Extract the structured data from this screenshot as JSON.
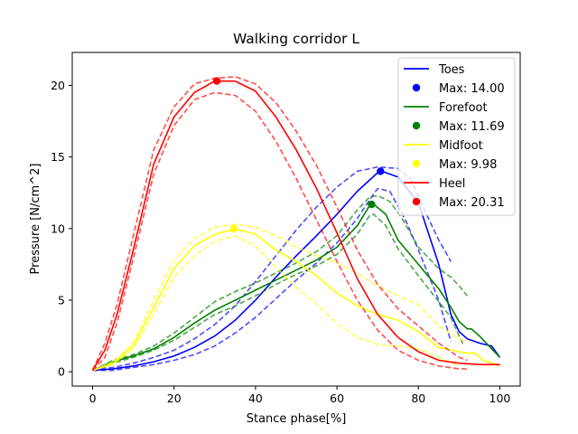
{
  "chart_data": {
    "type": "line",
    "title": "Walking corridor L",
    "xlabel": "Stance phase[%]",
    "ylabel": "Pressure [N/cm^2]",
    "xlim": [
      -5,
      105
    ],
    "ylim": [
      -1,
      22.3
    ],
    "xticks": [
      0,
      20,
      40,
      60,
      80,
      100
    ],
    "yticks": [
      0,
      5,
      10,
      15,
      20
    ],
    "grid": false,
    "legend_position": "top-right",
    "series": [
      {
        "name": "Toes",
        "color": "#0000ff",
        "mean": [
          [
            0,
            0.1
          ],
          [
            5,
            0.2
          ],
          [
            10,
            0.4
          ],
          [
            15,
            0.7
          ],
          [
            20,
            1.1
          ],
          [
            25,
            1.7
          ],
          [
            30,
            2.5
          ],
          [
            35,
            3.6
          ],
          [
            40,
            5.0
          ],
          [
            45,
            6.6
          ],
          [
            50,
            8.1
          ],
          [
            55,
            9.5
          ],
          [
            60,
            11.0
          ],
          [
            65,
            12.6
          ],
          [
            70,
            13.9
          ],
          [
            71,
            14.0
          ],
          [
            75,
            13.6
          ],
          [
            80,
            11.8
          ],
          [
            85,
            7.5
          ],
          [
            88,
            4.0
          ],
          [
            90,
            2.8
          ],
          [
            92,
            2.3
          ],
          [
            95,
            2.0
          ],
          [
            98,
            1.8
          ],
          [
            100,
            1.0
          ]
        ],
        "upper": [
          [
            0,
            0.2
          ],
          [
            5,
            0.3
          ],
          [
            10,
            0.6
          ],
          [
            15,
            1.0
          ],
          [
            20,
            1.5
          ],
          [
            25,
            2.3
          ],
          [
            30,
            3.3
          ],
          [
            35,
            4.6
          ],
          [
            40,
            6.3
          ],
          [
            45,
            8.1
          ],
          [
            50,
            9.9
          ],
          [
            55,
            11.5
          ],
          [
            60,
            12.9
          ],
          [
            65,
            14.0
          ],
          [
            70,
            14.3
          ],
          [
            75,
            14.2
          ],
          [
            78,
            13.5
          ],
          [
            82,
            11.0
          ],
          [
            85,
            9.2
          ],
          [
            88,
            7.7
          ]
        ],
        "lower": [
          [
            0,
            0.1
          ],
          [
            5,
            0.1
          ],
          [
            10,
            0.3
          ],
          [
            15,
            0.5
          ],
          [
            20,
            0.8
          ],
          [
            25,
            1.2
          ],
          [
            30,
            1.8
          ],
          [
            35,
            2.7
          ],
          [
            40,
            3.8
          ],
          [
            45,
            5.1
          ],
          [
            50,
            6.4
          ],
          [
            55,
            7.6
          ],
          [
            60,
            9.0
          ],
          [
            65,
            10.7
          ],
          [
            68,
            12.0
          ],
          [
            70,
            12.8
          ],
          [
            73,
            12.6
          ],
          [
            77,
            10.5
          ],
          [
            80,
            8.5
          ],
          [
            85,
            5.0
          ],
          [
            88,
            2.1
          ]
        ],
        "max": {
          "x": 70.7,
          "y": 14.0,
          "label": "Max: 14.00"
        }
      },
      {
        "name": "Forefoot",
        "color": "#008000",
        "mean": [
          [
            0,
            0.1
          ],
          [
            5,
            0.7
          ],
          [
            10,
            1.1
          ],
          [
            15,
            1.6
          ],
          [
            20,
            2.4
          ],
          [
            25,
            3.4
          ],
          [
            30,
            4.3
          ],
          [
            35,
            5.0
          ],
          [
            40,
            5.7
          ],
          [
            45,
            6.4
          ],
          [
            50,
            7.1
          ],
          [
            55,
            7.8
          ],
          [
            60,
            8.7
          ],
          [
            65,
            10.2
          ],
          [
            68,
            11.6
          ],
          [
            69,
            11.7
          ],
          [
            72,
            11.0
          ],
          [
            75,
            9.2
          ],
          [
            80,
            7.5
          ],
          [
            85,
            5.8
          ],
          [
            88,
            4.5
          ],
          [
            90,
            3.5
          ],
          [
            92,
            3.0
          ],
          [
            93,
            3.0
          ],
          [
            95,
            2.5
          ],
          [
            98,
            1.6
          ],
          [
            100,
            1.0
          ]
        ],
        "upper": [
          [
            0,
            0.1
          ],
          [
            5,
            0.8
          ],
          [
            10,
            1.2
          ],
          [
            15,
            1.8
          ],
          [
            20,
            2.7
          ],
          [
            25,
            3.8
          ],
          [
            30,
            4.9
          ],
          [
            35,
            5.6
          ],
          [
            40,
            6.2
          ],
          [
            45,
            6.9
          ],
          [
            50,
            7.6
          ],
          [
            55,
            8.4
          ],
          [
            60,
            9.5
          ],
          [
            65,
            11.3
          ],
          [
            68,
            12.2
          ],
          [
            70,
            12.3
          ],
          [
            73,
            11.9
          ],
          [
            76,
            10.7
          ],
          [
            80,
            8.7
          ],
          [
            85,
            7.2
          ],
          [
            88,
            6.6
          ],
          [
            90,
            6.0
          ],
          [
            92,
            5.3
          ]
        ],
        "lower": [
          [
            0,
            0.1
          ],
          [
            5,
            0.6
          ],
          [
            10,
            1.0
          ],
          [
            15,
            1.5
          ],
          [
            20,
            2.2
          ],
          [
            25,
            3.1
          ],
          [
            30,
            4.0
          ],
          [
            35,
            4.6
          ],
          [
            40,
            5.3
          ],
          [
            45,
            6.1
          ],
          [
            50,
            6.8
          ],
          [
            55,
            7.4
          ],
          [
            60,
            8.2
          ],
          [
            65,
            9.6
          ],
          [
            68,
            10.9
          ],
          [
            69,
            11.0
          ],
          [
            72,
            10.2
          ],
          [
            75,
            8.6
          ],
          [
            80,
            6.7
          ],
          [
            85,
            4.9
          ],
          [
            88,
            3.8
          ],
          [
            90,
            2.5
          ],
          [
            91,
            1.9
          ]
        ],
        "max": {
          "x": 68.5,
          "y": 11.69,
          "label": "Max: 11.69"
        }
      },
      {
        "name": "Midfoot",
        "color": "#ffff00",
        "mean": [
          [
            0,
            0.1
          ],
          [
            5,
            0.6
          ],
          [
            10,
            1.8
          ],
          [
            15,
            4.5
          ],
          [
            20,
            7.2
          ],
          [
            25,
            8.8
          ],
          [
            30,
            9.6
          ],
          [
            35,
            9.98
          ],
          [
            40,
            9.6
          ],
          [
            45,
            8.5
          ],
          [
            50,
            7.7
          ],
          [
            55,
            6.7
          ],
          [
            60,
            5.5
          ],
          [
            65,
            4.6
          ],
          [
            70,
            4.0
          ],
          [
            75,
            3.6
          ],
          [
            80,
            2.8
          ],
          [
            85,
            1.7
          ],
          [
            90,
            1.4
          ],
          [
            92,
            1.3
          ],
          [
            94,
            1.3
          ],
          [
            96,
            0.8
          ],
          [
            100,
            0.4
          ]
        ],
        "upper": [
          [
            0,
            0.1
          ],
          [
            5,
            0.7
          ],
          [
            10,
            2.0
          ],
          [
            15,
            5.0
          ],
          [
            20,
            7.8
          ],
          [
            25,
            9.3
          ],
          [
            30,
            10.1
          ],
          [
            35,
            10.3
          ],
          [
            40,
            10.1
          ],
          [
            45,
            9.5
          ],
          [
            50,
            8.7
          ],
          [
            55,
            8.1
          ],
          [
            60,
            7.6
          ],
          [
            65,
            6.9
          ],
          [
            70,
            6.0
          ],
          [
            75,
            5.3
          ],
          [
            80,
            4.7
          ],
          [
            85,
            3.2
          ],
          [
            90,
            2.3
          ],
          [
            92,
            2.1
          ]
        ],
        "lower": [
          [
            0,
            0.1
          ],
          [
            5,
            0.5
          ],
          [
            10,
            1.6
          ],
          [
            15,
            4.0
          ],
          [
            20,
            6.6
          ],
          [
            25,
            8.1
          ],
          [
            30,
            9.1
          ],
          [
            35,
            9.5
          ],
          [
            40,
            8.8
          ],
          [
            45,
            7.3
          ],
          [
            50,
            5.9
          ],
          [
            55,
            4.7
          ],
          [
            60,
            3.4
          ],
          [
            65,
            2.4
          ],
          [
            70,
            1.9
          ],
          [
            75,
            1.8
          ],
          [
            80,
            1.6
          ],
          [
            85,
            1.0
          ],
          [
            90,
            0.4
          ]
        ],
        "max": {
          "x": 34.7,
          "y": 9.98,
          "label": "Max: 9.98"
        }
      },
      {
        "name": "Heel",
        "color": "#ff0000",
        "mean": [
          [
            0,
            0.1
          ],
          [
            3,
            1.5
          ],
          [
            6,
            4.0
          ],
          [
            10,
            8.5
          ],
          [
            15,
            14.5
          ],
          [
            20,
            17.8
          ],
          [
            25,
            19.5
          ],
          [
            30,
            20.3
          ],
          [
            35,
            20.3
          ],
          [
            40,
            19.6
          ],
          [
            45,
            17.8
          ],
          [
            50,
            15.5
          ],
          [
            55,
            12.8
          ],
          [
            60,
            9.7
          ],
          [
            65,
            6.5
          ],
          [
            70,
            4.0
          ],
          [
            75,
            2.4
          ],
          [
            80,
            1.4
          ],
          [
            85,
            0.8
          ],
          [
            90,
            0.6
          ],
          [
            95,
            0.5
          ],
          [
            100,
            0.5
          ]
        ],
        "upper": [
          [
            0,
            0.1
          ],
          [
            3,
            2.0
          ],
          [
            6,
            4.7
          ],
          [
            10,
            9.5
          ],
          [
            15,
            15.5
          ],
          [
            20,
            18.5
          ],
          [
            25,
            20.1
          ],
          [
            30,
            20.5
          ],
          [
            35,
            20.6
          ],
          [
            40,
            20.1
          ],
          [
            45,
            18.8
          ],
          [
            50,
            16.8
          ],
          [
            55,
            14.4
          ],
          [
            60,
            11.5
          ],
          [
            65,
            8.5
          ],
          [
            70,
            6.1
          ],
          [
            75,
            4.4
          ],
          [
            80,
            3.2
          ],
          [
            85,
            2.0
          ],
          [
            90,
            1.0
          ],
          [
            92,
            0.8
          ]
        ],
        "lower": [
          [
            0,
            0.1
          ],
          [
            3,
            1.0
          ],
          [
            6,
            3.4
          ],
          [
            10,
            7.9
          ],
          [
            15,
            13.8
          ],
          [
            20,
            17.2
          ],
          [
            25,
            19.0
          ],
          [
            30,
            19.5
          ],
          [
            35,
            19.3
          ],
          [
            40,
            18.2
          ],
          [
            45,
            16.1
          ],
          [
            50,
            13.5
          ],
          [
            55,
            10.6
          ],
          [
            60,
            7.7
          ],
          [
            65,
            5.0
          ],
          [
            70,
            2.9
          ],
          [
            75,
            1.5
          ],
          [
            80,
            0.8
          ],
          [
            85,
            0.4
          ],
          [
            90,
            0.2
          ],
          [
            92,
            0.2
          ]
        ],
        "max": {
          "x": 30.5,
          "y": 20.31,
          "label": "Max: 20.31"
        }
      }
    ]
  }
}
